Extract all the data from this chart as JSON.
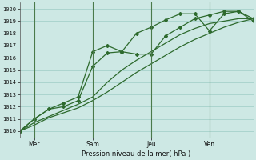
{
  "background_color": "#cde8e4",
  "grid_color": "#9dccc5",
  "line_color": "#2d6a2d",
  "vline_color": "#4a7a4a",
  "xlabel": "Pression niveau de la mer( hPa )",
  "ylabel_ticks": [
    1010,
    1011,
    1012,
    1013,
    1014,
    1015,
    1016,
    1017,
    1018,
    1019,
    1020
  ],
  "xlim": [
    0,
    96
  ],
  "ylim": [
    1009.5,
    1020.5
  ],
  "x_tick_positions": [
    6,
    30,
    54,
    78
  ],
  "x_tick_labels": [
    "Mer",
    "Sam",
    "Jeu",
    "Ven"
  ],
  "x_vline_positions": [
    6,
    30,
    54,
    78
  ],
  "series": [
    {
      "x": [
        0,
        6,
        12,
        18,
        24,
        30,
        36,
        42,
        48,
        54,
        60,
        66,
        72,
        78,
        84,
        90,
        96
      ],
      "y": [
        1010.0,
        1010.5,
        1011.1,
        1011.5,
        1011.9,
        1012.5,
        1013.2,
        1014.0,
        1014.8,
        1015.5,
        1016.2,
        1016.9,
        1017.5,
        1018.0,
        1018.5,
        1018.9,
        1019.2
      ],
      "marker": null,
      "linestyle": "-",
      "linewidth": 0.9
    },
    {
      "x": [
        0,
        6,
        12,
        18,
        24,
        30,
        36,
        42,
        48,
        54,
        60,
        66,
        72,
        78,
        84,
        90,
        96
      ],
      "y": [
        1010.0,
        1010.7,
        1011.2,
        1011.7,
        1012.2,
        1012.8,
        1014.0,
        1015.0,
        1015.8,
        1016.5,
        1017.2,
        1017.9,
        1018.4,
        1018.8,
        1019.0,
        1019.2,
        1019.2
      ],
      "marker": null,
      "linestyle": "-",
      "linewidth": 0.9
    },
    {
      "x": [
        0,
        6,
        12,
        18,
        24,
        30,
        36,
        42,
        48,
        54,
        60,
        66,
        72,
        78,
        84,
        90,
        96
      ],
      "y": [
        1010.0,
        1011.0,
        1011.8,
        1012.0,
        1012.5,
        1015.3,
        1016.4,
        1016.5,
        1016.3,
        1016.3,
        1017.8,
        1018.5,
        1019.2,
        1019.5,
        1019.8,
        1019.8,
        1019.0
      ],
      "marker": "D",
      "markersize": 2.0,
      "linestyle": "-",
      "linewidth": 0.9
    },
    {
      "x": [
        0,
        6,
        12,
        18,
        24,
        30,
        36,
        42,
        48,
        54,
        60,
        66,
        72,
        78,
        84,
        90,
        96
      ],
      "y": [
        1010.0,
        1011.0,
        1011.8,
        1012.3,
        1012.8,
        1016.5,
        1017.0,
        1016.5,
        1018.0,
        1018.5,
        1019.1,
        1019.6,
        1019.6,
        1018.2,
        1019.6,
        1019.8,
        1019.2
      ],
      "marker": "D",
      "markersize": 2.0,
      "linestyle": "-",
      "linewidth": 0.9
    }
  ]
}
